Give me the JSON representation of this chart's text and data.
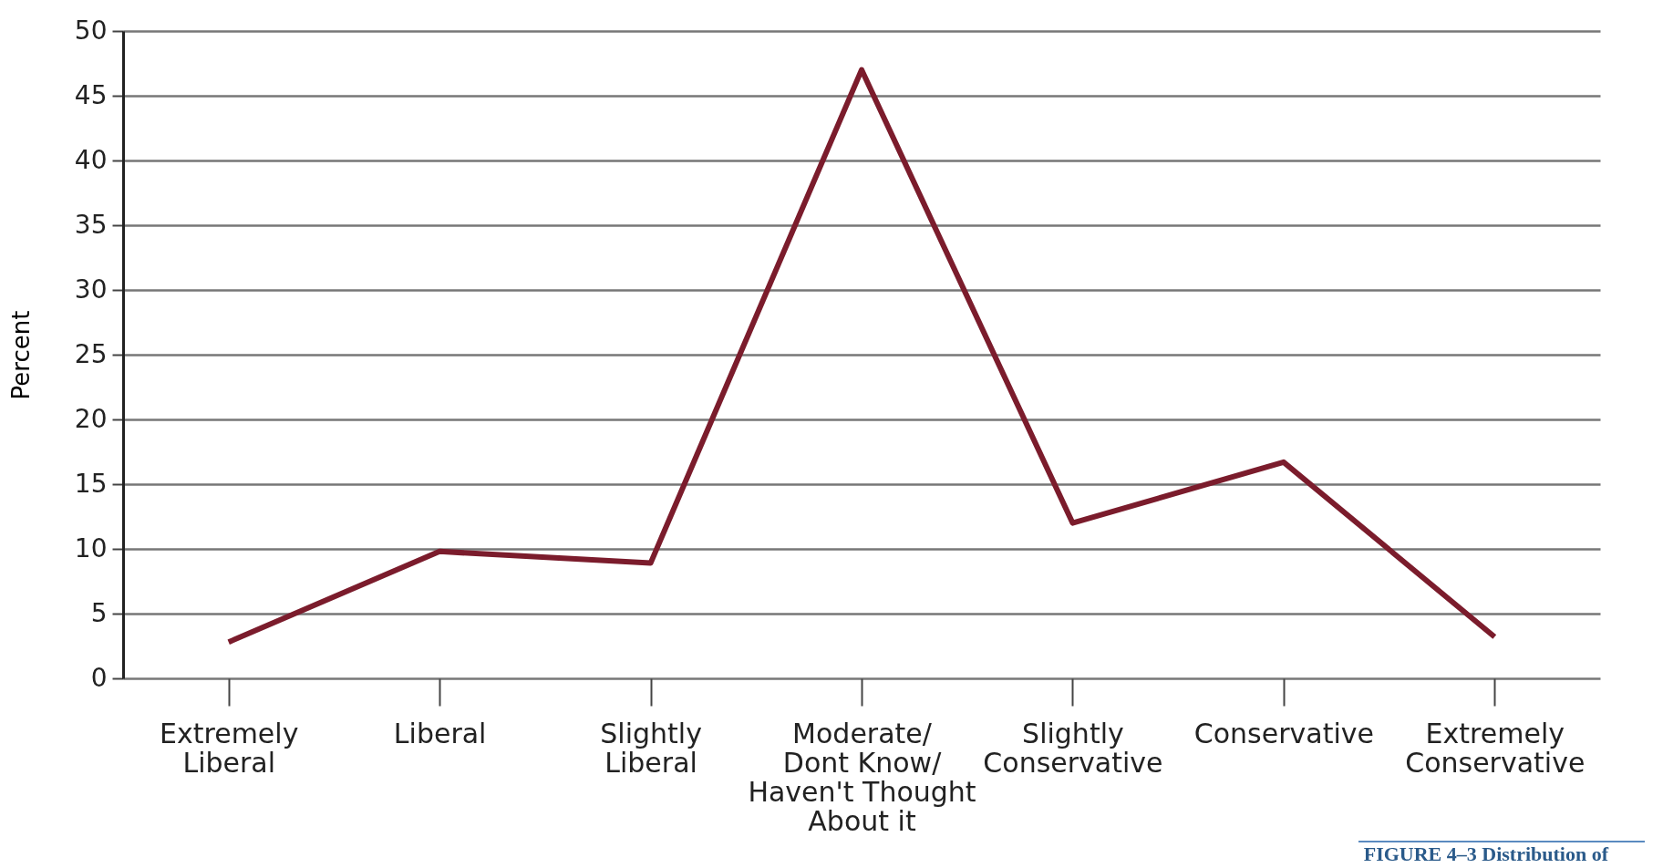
{
  "chart_data": {
    "type": "line",
    "ylabel": "Percent",
    "categories": [
      "Extremely Liberal",
      "Liberal",
      "Slightly Liberal",
      "Moderate/ Dont Know/ Haven't Thought About it",
      "Slightly Conservative",
      "Conservative",
      "Extremely Conservative"
    ],
    "series": [
      {
        "color": "#7b1c2c",
        "values": [
          2.8,
          9.8,
          8.9,
          47,
          12,
          16.7,
          3.2
        ]
      }
    ],
    "ylim": [
      0,
      50
    ],
    "yticks": [
      0,
      5,
      10,
      15,
      20,
      25,
      30,
      35,
      40,
      45,
      50
    ],
    "grid": "y",
    "marker": "none",
    "line_style": "solid",
    "legend": false,
    "annotations": [
      "FIGURE 4–3 Distribution of"
    ]
  }
}
